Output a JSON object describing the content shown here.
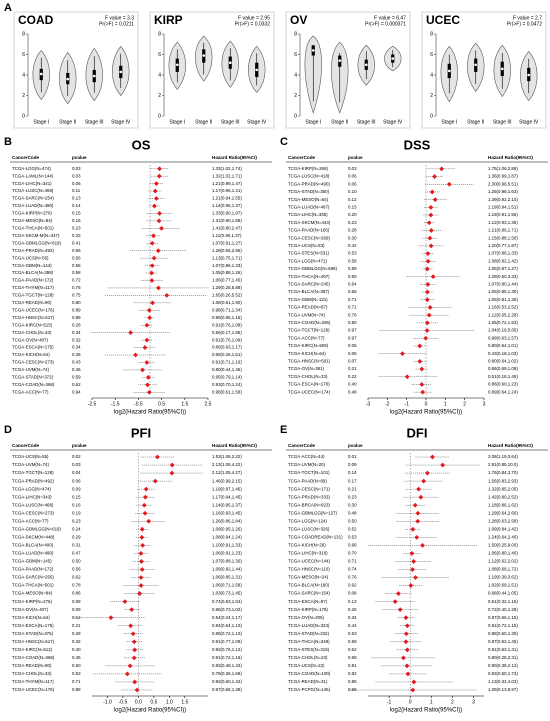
{
  "panel_labels": [
    "A",
    "B",
    "C",
    "D",
    "E"
  ],
  "chart_data": [
    {
      "type": "violin",
      "title": "COAD",
      "f_value": "F value = 3.3",
      "p_value": "Pr(>F) = 0.0211",
      "categories": [
        "Stage I",
        "Stage II",
        "Stage III",
        "Stage IV"
      ],
      "ylim": [
        0,
        8
      ],
      "yticks": [
        0,
        2,
        4,
        6,
        8
      ],
      "medians": [
        4.1,
        3.6,
        3.9,
        4.3
      ],
      "q1": [
        3.5,
        3.1,
        3.3,
        3.7
      ],
      "q3": [
        4.6,
        4.2,
        4.5,
        4.9
      ],
      "mins": [
        1.6,
        1.2,
        1.5,
        2.0
      ],
      "maxs": [
        6.4,
        6.2,
        6.6,
        6.8
      ]
    },
    {
      "type": "violin",
      "title": "KIRP",
      "f_value": "F value = 2.95",
      "p_value": "Pr(>F) = 0.0332",
      "categories": [
        "Stage I",
        "Stage II",
        "Stage III",
        "Stage IV"
      ],
      "ylim": [
        0,
        8
      ],
      "yticks": [
        0,
        2,
        4,
        6,
        8
      ],
      "medians": [
        5.0,
        5.9,
        5.2,
        4.5
      ],
      "q1": [
        4.3,
        5.2,
        4.6,
        3.8
      ],
      "q3": [
        5.6,
        6.5,
        5.8,
        5.2
      ],
      "mins": [
        2.6,
        3.4,
        2.8,
        2.3
      ],
      "maxs": [
        7.2,
        7.8,
        7.3,
        6.8
      ]
    },
    {
      "type": "violin",
      "title": "OV",
      "f_value": "F value = 6.47",
      "p_value": "Pr(>F) = 0.000371",
      "categories": [
        "Stage I",
        "Stage II",
        "Stage III",
        "Stage IV"
      ],
      "ylim": [
        0,
        8
      ],
      "yticks": [
        0,
        2,
        4,
        6,
        8
      ],
      "medians": [
        6.4,
        5.4,
        5.0,
        5.6
      ],
      "q1": [
        5.9,
        4.8,
        4.5,
        5.2
      ],
      "q3": [
        6.9,
        5.9,
        5.5,
        6.0
      ],
      "mins": [
        0.3,
        0.3,
        3.0,
        4.4
      ],
      "maxs": [
        7.8,
        7.2,
        6.9,
        6.8
      ]
    },
    {
      "type": "violin",
      "title": "UCEC",
      "f_value": "F value = 2.7",
      "p_value": "Pr(>F) = 0.0472",
      "categories": [
        "Stage I",
        "Stage II",
        "Stage III",
        "Stage IV"
      ],
      "ylim": [
        0,
        8
      ],
      "yticks": [
        0,
        2,
        4,
        6,
        8
      ],
      "medians": [
        4.4,
        5.0,
        4.6,
        4.0
      ],
      "q1": [
        3.7,
        4.3,
        3.9,
        3.4
      ],
      "q3": [
        5.1,
        5.6,
        5.3,
        4.7
      ],
      "mins": [
        1.4,
        2.4,
        1.9,
        1.5
      ],
      "maxs": [
        6.8,
        7.1,
        6.9,
        6.3
      ]
    },
    {
      "type": "forest",
      "title": "OS",
      "headers": [
        "CancerCode",
        "pvalue",
        "Hazard Ratio(95%CI)"
      ],
      "xlabel": "log2(Hazard Ratio(95%CI))",
      "xlim": [
        -2.5,
        2.5
      ],
      "xticks": [
        -2.5,
        -1.5,
        -0.5,
        0.5,
        1.5,
        2.5
      ],
      "color": "#e41a1c",
      "codes": [
        "TCGA-LGG(N=474)",
        "TCGA-LAML(N=144)",
        "TCGA-LIHC(N=341)",
        "TCGA-LUSC(N=468)",
        "TCGA-SARC(N=254)",
        "TCGA-LUAD(N=490)",
        "TCGA-KIRP(N=276)",
        "TCGA-MESO(N=84)",
        "TCGA-THCA(N=501)",
        "TCGA-SKCM-M(N=347)",
        "TCGA-GBMLGG(N=619)",
        "TCGA-PRAD(N=492)",
        "TCGA-UCS(N=55)",
        "TCGA-GBM(N=144)",
        "TCGA-BLCA(N=398)",
        "TCGA-PAAD(N=172)",
        "TCGA-THYM(N=117)",
        "TCGA-TGCT(N=128)",
        "TCGA-READ(N=90)",
        "TCGA-UCEC(N=176)",
        "TCGA-HNSC(N=517)",
        "TCGA-KIRC(N=515)",
        "TCGA-CHOL(N=33)",
        "TCGA-OV(N=407)",
        "TCGA-ESCA(N=175)",
        "TCGA-KICH(N=64)",
        "TCGA-CESC(N=273)",
        "TCGA-UVM(N=74)",
        "TCGA-STAD(N=372)",
        "TCGA-COAD(N=368)",
        "TCGA-ACC(N=77)"
      ],
      "pvalues": [
        "0.03",
        "0.03",
        "0.06",
        "0.11",
        "0.13",
        "0.14",
        "0.15",
        "0.16",
        "0.23",
        "0.33",
        "0.41",
        "0.56",
        "0.56",
        "0.56",
        "0.58",
        "0.72",
        "0.75",
        "0.75",
        "0.80",
        "0.89",
        "0.89",
        "0.28",
        "0.34",
        "0.32",
        "0.34",
        "0.35",
        "0.43",
        "0.46",
        "0.59",
        "0.62",
        "0.94"
      ],
      "hr_labels": [
        "1.33(1.02,1.74)",
        "1.32(1.02,1.71)",
        "1.21(0.99,1.47)",
        "1.17(0.96,1.41)",
        "1.21(0.94,1.55)",
        "1.14(0.96,1.37)",
        "1.33(0.90,1.97)",
        "1.31(0.90,1.89)",
        "1.41(0.80,2.47)",
        "1.11(0.90,1.37)",
        "1.07(0.91,1.27)",
        "1.28(0.55,2.96)",
        "1.13(0.75,1.71)",
        "1.07(0.86,1.33)",
        "1.05(0.88,1.26)",
        "1.06(0.77,1.45)",
        "1.29(0.28,5.88)",
        "1.65(0.26,5.52)",
        "1.08(0.61,1.90)",
        "0.98(0.71,1.34)",
        "0.99(0.85,1.15)",
        "0.91(0.76,1.08)",
        "0.56(0.17,1.85)",
        "0.91(0.76,1.09)",
        "0.86(0.63,1.17)",
        "0.65(0.26,1.61)",
        "0.91(0.71,1.16)",
        "0.80(0.44,1.45)",
        "0.95(0.79,1.14)",
        "0.93(0.70,1.24)",
        "0.98(0.61,1.58)"
      ],
      "hr": [
        1.33,
        1.32,
        1.21,
        1.17,
        1.21,
        1.14,
        1.33,
        1.31,
        1.41,
        1.11,
        1.07,
        1.28,
        1.13,
        1.07,
        1.05,
        1.06,
        1.29,
        1.65,
        1.08,
        0.98,
        0.99,
        0.91,
        0.56,
        0.91,
        0.86,
        0.65,
        0.91,
        0.8,
        0.95,
        0.93,
        0.98
      ],
      "lower": [
        1.02,
        1.02,
        0.99,
        0.96,
        0.94,
        0.96,
        0.9,
        0.9,
        0.8,
        0.9,
        0.91,
        0.55,
        0.75,
        0.86,
        0.88,
        0.77,
        0.28,
        0.26,
        0.61,
        0.71,
        0.85,
        0.76,
        0.17,
        0.76,
        0.63,
        0.26,
        0.71,
        0.44,
        0.79,
        0.7,
        0.61
      ],
      "upper": [
        1.74,
        1.71,
        1.47,
        1.41,
        1.55,
        1.37,
        1.97,
        1.89,
        2.47,
        1.37,
        1.27,
        2.96,
        1.71,
        1.33,
        1.26,
        1.45,
        5.88,
        5.52,
        1.9,
        1.34,
        1.15,
        1.08,
        1.85,
        1.09,
        1.17,
        1.61,
        1.16,
        1.45,
        1.14,
        1.24,
        1.58
      ]
    },
    {
      "type": "forest",
      "title": "DSS",
      "headers": [
        "CancerCode",
        "pvalue",
        "Hazard Ratio(95%CI)"
      ],
      "xlabel": "log2(Hazard Ratio(95%CI))",
      "xlim": [
        -3,
        3
      ],
      "xticks": [
        -3,
        -2,
        -1,
        0,
        1,
        2,
        3
      ],
      "color": "#e41a1c",
      "codes": [
        "TCGA-KIRP(N=269)",
        "TCGA-LUSC(N=418)",
        "TCGA-PRAD(N=490)",
        "TCGA-STAD(N=350)",
        "TCGA-MESO(N=64)",
        "TCGA-LUAD(N=467)",
        "TCGA-LIHC(N=335)",
        "TCGA-SKCM(N=444)",
        "TCGA-PAAD(N=166)",
        "TCGA-CESC(N=269)",
        "TCGA-UCS(N=53)",
        "TCGA-STES(N=531)",
        "TCGA-LGG(N=471)",
        "TCGA-GBMLGG(N=599)",
        "TCGA-THCA(N=497)",
        "TCGA-SARC(N=245)",
        "TCGA-BLCA(N=387)",
        "TCGA-GBM(N=131)",
        "TCGA-READ(N=87)",
        "TCGA-UVM(N=74)",
        "TCGA-COAD(N=336)",
        "TCGA-TGCT(N=126)",
        "TCGA-ACC(N=77)",
        "TCGA-KIRC(N=509)",
        "TCGA-KICH(N=64)",
        "TCGA-HNSC(N=501)",
        "TCGA-OV(N=381)",
        "TCGA-CHOL(N=33)",
        "TCGA-ESCA(N=170)",
        "TCGA-UCEC(N=174)"
      ],
      "pvalues": [
        "0.03",
        "0.06",
        "0.06",
        "0.10",
        "0.12",
        "0.15",
        "0.20",
        "0.23",
        "0.28",
        "0.30",
        "0.42",
        "0.53",
        "0.58",
        "0.59",
        "0.60",
        "0.64",
        "0.65",
        "0.71",
        "0.71",
        "0.76",
        "0.80",
        "0.97",
        "0.97",
        "0.06",
        "0.06",
        "0.07",
        "0.21",
        "0.22",
        "0.40",
        "0.48"
      ],
      "hr_labels": [
        "1.75(1.06,2.89)",
        "1.36(0.99,1.87)",
        "2.30(0.96,5.51)",
        "1.25(0.96,1.63)",
        "1.39(0.92,2.10)",
        "1.19(0.94,1.51)",
        "1.19(0.91,1.56)",
        "1.12(0.93,1.35)",
        "1.21(0.86,1.71)",
        "1.15(0.88,1.50)",
        "1.20(0.77,1.87)",
        "1.07(0.86,1.33)",
        "1.08(0.82,1.42)",
        "1.05(0.87,1.27)",
        "1.29(0.50,3.33)",
        "1.07(0.80,1.44)",
        "1.05(0.85,1.30)",
        "1.05(0.81,1.36)",
        "1.16(0.53,2.52)",
        "1.12(0.55,2.28)",
        "1.05(0.72,1.53)",
        "1.04(0.19,5.65)",
        "0.99(0.63,1.57)",
        "0.80(0.64,1.01)",
        "0.43(0.18,1.03)",
        "0.80(0.64,1.02)",
        "0.86(0.69,1.08)",
        "0.51(0.18,1.49)",
        "0.86(0.60,1.23)",
        "0.89(0.64,1.24)"
      ],
      "hr": [
        1.75,
        1.36,
        2.3,
        1.25,
        1.39,
        1.19,
        1.19,
        1.12,
        1.21,
        1.15,
        1.2,
        1.07,
        1.08,
        1.05,
        1.29,
        1.07,
        1.05,
        1.05,
        1.16,
        1.12,
        1.05,
        1.04,
        0.99,
        0.8,
        0.43,
        0.8,
        0.86,
        0.51,
        0.86,
        0.89
      ],
      "lower": [
        1.06,
        0.99,
        0.96,
        0.96,
        0.92,
        0.94,
        0.91,
        0.93,
        0.86,
        0.88,
        0.77,
        0.86,
        0.82,
        0.87,
        0.5,
        0.8,
        0.85,
        0.81,
        0.53,
        0.55,
        0.72,
        0.19,
        0.63,
        0.64,
        0.18,
        0.64,
        0.69,
        0.18,
        0.6,
        0.64
      ],
      "upper": [
        2.89,
        1.87,
        5.51,
        1.63,
        2.1,
        1.51,
        1.56,
        1.35,
        1.71,
        1.5,
        1.87,
        1.33,
        1.42,
        1.27,
        3.33,
        1.44,
        1.3,
        1.36,
        2.52,
        2.28,
        1.53,
        5.65,
        1.57,
        1.01,
        1.03,
        1.02,
        1.08,
        1.49,
        1.23,
        1.24
      ]
    },
    {
      "type": "forest",
      "title": "PFI",
      "headers": [
        "CancerCode",
        "pvalue",
        "Hazard Ratio(95%CI)"
      ],
      "xlabel": "log2(Hazard Ratio(95%CI))",
      "xlim": [
        -1.5,
        2.25
      ],
      "xticks": [
        {
          "value": -1,
          "label": "-1.0"
        },
        -0.5,
        {
          "value": 0,
          "label": "0.0"
        },
        0.5,
        {
          "value": 1,
          "label": "1.0"
        },
        1.5
      ],
      "color": "#e41a1c",
      "codes": [
        "TCGA-UCS(N=55)",
        "TCGA-UVM(N=74)",
        "TCGA-TGCT(N=128)",
        "TCGA-PRAD(N=492)",
        "TCGA-LGG(N=474)",
        "TCGA-LIHC(N=343)",
        "TCGA-LUSC(N=468)",
        "TCGA-CESC(N=273)",
        "TCGA-ACC(N=77)",
        "TCGA-GBMLGG(N=619)",
        "TCGA-SKCM(N=448)",
        "TCGA-BLCA(N=400)",
        "TCGA-LUAD(N=490)",
        "TCGA-GBM(N=145)",
        "TCGA-PAAD(N=172)",
        "TCGA-SARC(N=256)",
        "TCGA-THCA(N=501)",
        "TCGA-MESO(N=84)",
        "TCGA-KIRP(N=276)",
        "TCGA-OV(N=407)",
        "TCGA-KICH(N=64)",
        "TCGA-ESCA(N=175)",
        "TCGA-STAD(N=375)",
        "TCGA-HNSC(N=517)",
        "TCGA-KIRC(N=512)",
        "TCGA-COAD(N=368)",
        "TCGA-READ(N=90)",
        "TCGA-CHOL(N=33)",
        "TCGA-THYM(N=117)",
        "TCGA-UCEC(N=178)"
      ],
      "pvalues": [
        "0.02",
        "0.03",
        "0.04",
        "0.06",
        "0.09",
        "0.15",
        "0.16",
        "0.19",
        "0.23",
        "0.24",
        "0.29",
        "0.31",
        "0.47",
        "0.50",
        "0.56",
        "0.62",
        "0.78",
        "0.86",
        "0.08",
        "0.09",
        "0.12",
        "0.21",
        "0.28",
        "0.32",
        "0.40",
        "0.45",
        "0.50",
        "0.53",
        "0.71",
        "0.88"
      ],
      "hr_labels": [
        "1.53(1.06,2.22)",
        "2.13(1.08,4.22)",
        "2.12(1.05,4.27)",
        "1.46(0.99,2.15)",
        "1.19(0.97,1.46)",
        "1.17(0.94,1.45)",
        "1.14(0.95,1.37)",
        "1.16(0.93,1.45)",
        "1.26(0.86,1.84)",
        "1.09(0.95,1.26)",
        "1.08(0.94,1.24)",
        "1.10(0.91,1.33)",
        "1.06(0.91,1.23)",
        "1.07(0.88,1.30)",
        "1.09(0.82,1.44)",
        "1.06(0.85,1.31)",
        "1.06(0.71,1.58)",
        "1.03(0.73,1.45)",
        "0.74(0.53,1.04)",
        "0.86(0.73,1.02)",
        "0.54(0.24,1.17)",
        "0.84(0.64,1.10)",
        "0.89(0.72,1.10)",
        "0.91(0.77,1.09)",
        "0.92(0.76,1.12)",
        "0.91(0.72,1.16)",
        "0.83(0.48,1.43)",
        "0.78(0.36,1.69)",
        "0.92(0.60,1.42)",
        "0.97(0.68,1.39)"
      ],
      "hr": [
        1.53,
        2.13,
        2.12,
        1.46,
        1.19,
        1.17,
        1.14,
        1.16,
        1.26,
        1.09,
        1.08,
        1.1,
        1.06,
        1.07,
        1.09,
        1.06,
        1.06,
        1.03,
        0.74,
        0.86,
        0.54,
        0.84,
        0.89,
        0.91,
        0.92,
        0.91,
        0.83,
        0.78,
        0.92,
        0.97
      ],
      "lower": [
        1.06,
        1.08,
        1.05,
        0.99,
        0.97,
        0.94,
        0.95,
        0.93,
        0.86,
        0.95,
        0.94,
        0.91,
        0.91,
        0.88,
        0.82,
        0.85,
        0.71,
        0.73,
        0.53,
        0.73,
        0.24,
        0.64,
        0.72,
        0.77,
        0.76,
        0.72,
        0.48,
        0.36,
        0.6,
        0.68
      ],
      "upper": [
        2.22,
        4.22,
        4.27,
        2.15,
        1.46,
        1.45,
        1.37,
        1.45,
        1.84,
        1.26,
        1.24,
        1.33,
        1.23,
        1.3,
        1.44,
        1.31,
        1.58,
        1.45,
        1.04,
        1.02,
        1.17,
        1.1,
        1.1,
        1.09,
        1.12,
        1.16,
        1.43,
        1.69,
        1.42,
        1.39
      ]
    },
    {
      "type": "forest",
      "title": "DFI",
      "headers": [
        "CancerCode",
        "pvalue",
        "Hazard Ratio(95%CI)"
      ],
      "xlabel": "log2(Hazard Ratio(95%CI))",
      "xlim": [
        -2,
        3.5
      ],
      "xticks": [
        -1,
        0,
        1,
        2,
        3
      ],
      "color": "#e41a1c",
      "codes": [
        "TCGA-ACC(N=44)",
        "TCGA-UVM(N=20)",
        "TCGA-TGCT(N=101)",
        "TCGA-PAAD(N=69)",
        "TCGA-CESC(N=171)",
        "TCGA-PRAD(N=333)",
        "TCGA-BRCA(N=923)",
        "TCGA-GBMLGG(N=127)",
        "TCGA-LGG(N=124)",
        "TCGA-LUSC(N=326)",
        "TCGA-COADREAD(N=131)",
        "TCGA-KICH(N=29)",
        "TCGA-LIHC(N=316)",
        "TCGA-UCEC(N=144)",
        "TCGA-HNSC(N=110)",
        "TCGA-MESO(N=24)",
        "TCGA-BLCA(N=190)",
        "TCGA-SARC(N=154)",
        "TCGA-ESCA(N=87)",
        "TCGA-KIRP(N=178)",
        "TCGA-OV(N=205)",
        "TCGA-LUAD(N=323)",
        "TCGA-STAD(N=232)",
        "TCGA-THCA(N=349)",
        "TCGA-STES(N=319)",
        "TCGA-CHOL(N=23)",
        "TCGA-UCS(N=22)",
        "TCGA-COAD(N=100)",
        "TCGA-READ(N=31)",
        "TCGA-PCPG(N=146)"
      ],
      "pvalues": [
        "0.01",
        "0.09",
        "0.14",
        "0.17",
        "0.21",
        "0.23",
        "0.30",
        "0.48",
        "0.50",
        "0.52",
        "0.53",
        "0.66",
        "0.70",
        "0.71",
        "0.74",
        "0.76",
        "0.92",
        "0.08",
        "0.13",
        "0.26",
        "0.34",
        "0.44",
        "0.53",
        "0.59",
        "0.62",
        "0.68",
        "0.81",
        "0.82",
        "0.85",
        "0.95"
      ],
      "hr_labels": [
        "2.08(1.19,3.64)",
        "2.91(0.85,10.0)",
        "1.76(0.84,3.70)",
        "1.56(0.83,2.93)",
        "1.32(0.85,2.05)",
        "1.42(0.80,2.52)",
        "1.18(0.86,1.62)",
        "1.29(0.64,2.60)",
        "1.28(0.63,2.58)",
        "1.09(0.84,1.42)",
        "1.24(0.64,2.40)",
        "1.50(0.25,9.00)",
        "1.06(0.80,1.40)",
        "1.12(0.62,2.02)",
        "1.08(0.68,1.72)",
        "1.19(0.39,3.62)",
        "1.02(0.69,1.51)",
        "0.68(0.44,1.05)",
        "0.61(0.32,1.16)",
        "0.72(0.40,1.28)",
        "0.87(0.66,1.15)",
        "0.91(0.72,1.15)",
        "0.88(0.60,1.30)",
        "0.87(0.52,1.45)",
        "0.91(0.63,1.31)",
        "0.80(0.28,2.31)",
        "0.90(0.38,2.12)",
        "0.93(0.50,1.73)",
        "1.13(0.32,4.03)",
        "1.09(0.13,8.97)"
      ],
      "hr": [
        2.08,
        2.91,
        1.76,
        1.56,
        1.32,
        1.42,
        1.18,
        1.29,
        1.28,
        1.09,
        1.24,
        1.5,
        1.06,
        1.12,
        1.08,
        1.19,
        1.02,
        0.68,
        0.61,
        0.72,
        0.87,
        0.91,
        0.88,
        0.87,
        0.91,
        0.8,
        0.9,
        0.93,
        1.13,
        1.09
      ],
      "lower": [
        1.19,
        0.85,
        0.84,
        0.83,
        0.85,
        0.8,
        0.86,
        0.64,
        0.63,
        0.84,
        0.64,
        0.25,
        0.8,
        0.62,
        0.68,
        0.39,
        0.69,
        0.44,
        0.32,
        0.4,
        0.66,
        0.72,
        0.6,
        0.52,
        0.63,
        0.28,
        0.38,
        0.5,
        0.32,
        0.13
      ],
      "upper": [
        3.64,
        10.0,
        3.7,
        2.93,
        2.05,
        2.52,
        1.62,
        2.6,
        2.58,
        1.42,
        2.4,
        9.0,
        1.4,
        2.02,
        1.72,
        3.62,
        1.51,
        1.05,
        1.16,
        1.28,
        1.15,
        1.15,
        1.3,
        1.45,
        1.31,
        2.31,
        2.12,
        1.73,
        4.03,
        8.97
      ]
    }
  ]
}
